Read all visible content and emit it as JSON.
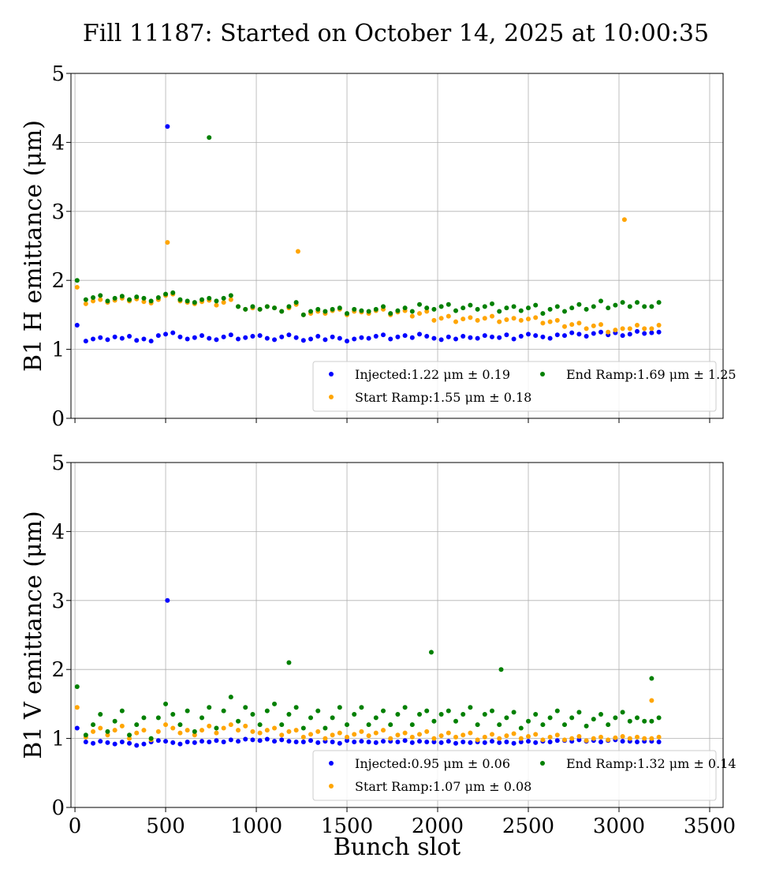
{
  "title": "Fill 11187: Started on October 14, 2025 at 10:00:35",
  "chart_data": [
    {
      "type": "scatter",
      "ylabel": "B1 H emittance (μm)",
      "xlabel": "",
      "xlim": [
        -22,
        3574
      ],
      "ylim": [
        0,
        5
      ],
      "xticks": [
        0,
        500,
        1000,
        1500,
        2000,
        2500,
        3000,
        3500
      ],
      "yticks": [
        "0",
        "1",
        "2",
        "3",
        "4",
        "5"
      ],
      "grid": true,
      "legend_placement": "lower-right",
      "x": [
        12,
        60,
        100,
        140,
        180,
        220,
        260,
        300,
        340,
        380,
        420,
        460,
        500,
        540,
        580,
        620,
        660,
        700,
        740,
        780,
        820,
        860,
        900,
        940,
        980,
        1020,
        1060,
        1100,
        1140,
        1180,
        1220,
        1260,
        1300,
        1340,
        1380,
        1420,
        1460,
        1500,
        1540,
        1580,
        1620,
        1660,
        1700,
        1740,
        1780,
        1820,
        1860,
        1900,
        1940,
        1980,
        2020,
        2060,
        2100,
        2140,
        2180,
        2220,
        2260,
        2300,
        2340,
        2380,
        2420,
        2460,
        2500,
        2540,
        2580,
        2620,
        2660,
        2700,
        2740,
        2780,
        2820,
        2860,
        2900,
        2940,
        2980,
        3020,
        3060,
        3100,
        3140,
        3180,
        3220
      ],
      "series": [
        {
          "name": "Injected:1.22 μm ± 0.19",
          "color": "#0000ff",
          "y": [
            1.35,
            1.12,
            1.15,
            1.17,
            1.14,
            1.18,
            1.16,
            1.19,
            1.13,
            1.15,
            1.12,
            1.2,
            1.22,
            1.24,
            1.18,
            1.15,
            1.17,
            1.2,
            1.16,
            1.14,
            1.18,
            1.21,
            1.15,
            1.17,
            1.19,
            1.2,
            1.16,
            1.14,
            1.18,
            1.21,
            1.17,
            1.13,
            1.15,
            1.19,
            1.14,
            1.18,
            1.16,
            1.12,
            1.15,
            1.17,
            1.16,
            1.19,
            1.21,
            1.15,
            1.18,
            1.2,
            1.17,
            1.22,
            1.19,
            1.16,
            1.14,
            1.18,
            1.15,
            1.19,
            1.17,
            1.16,
            1.2,
            1.18,
            1.17,
            1.21,
            1.15,
            1.19,
            1.22,
            1.2,
            1.18,
            1.16,
            1.21,
            1.2,
            1.24,
            1.22,
            1.19,
            1.23,
            1.25,
            1.21,
            1.24,
            1.2,
            1.22,
            1.26,
            1.23,
            1.24,
            1.25
          ],
          "outliers": [
            [
              510,
              4.23
            ]
          ]
        },
        {
          "name": "Start Ramp:1.55 μm ± 0.18",
          "color": "#ffa500",
          "y": [
            1.9,
            1.66,
            1.7,
            1.72,
            1.68,
            1.71,
            1.74,
            1.7,
            1.73,
            1.69,
            1.67,
            1.72,
            1.78,
            1.8,
            1.7,
            1.68,
            1.66,
            1.69,
            1.71,
            1.64,
            1.68,
            1.72,
            1.62,
            1.58,
            1.6,
            1.58,
            1.62,
            1.6,
            1.55,
            1.6,
            1.65,
            1.5,
            1.52,
            1.55,
            1.52,
            1.56,
            1.58,
            1.5,
            1.55,
            1.54,
            1.52,
            1.56,
            1.58,
            1.5,
            1.54,
            1.56,
            1.48,
            1.52,
            1.55,
            1.42,
            1.45,
            1.48,
            1.4,
            1.44,
            1.46,
            1.42,
            1.45,
            1.48,
            1.4,
            1.43,
            1.45,
            1.42,
            1.44,
            1.46,
            1.38,
            1.4,
            1.42,
            1.33,
            1.36,
            1.38,
            1.3,
            1.34,
            1.36,
            1.25,
            1.28,
            1.3,
            1.3,
            1.35,
            1.3,
            1.3,
            1.35
          ],
          "outliers": [
            [
              510,
              2.55
            ],
            [
              1230,
              2.42
            ],
            [
              3030,
              2.88
            ]
          ]
        },
        {
          "name": "End Ramp:1.69 μm ± 1.25",
          "color": "#008000",
          "y": [
            2.0,
            1.72,
            1.75,
            1.78,
            1.7,
            1.74,
            1.77,
            1.72,
            1.76,
            1.74,
            1.7,
            1.75,
            1.8,
            1.82,
            1.72,
            1.7,
            1.68,
            1.72,
            1.74,
            1.7,
            1.74,
            1.78,
            1.62,
            1.58,
            1.62,
            1.58,
            1.62,
            1.6,
            1.55,
            1.62,
            1.68,
            1.5,
            1.55,
            1.58,
            1.55,
            1.58,
            1.6,
            1.52,
            1.58,
            1.56,
            1.55,
            1.58,
            1.62,
            1.52,
            1.56,
            1.6,
            1.55,
            1.65,
            1.6,
            1.58,
            1.62,
            1.65,
            1.56,
            1.6,
            1.64,
            1.58,
            1.62,
            1.66,
            1.55,
            1.6,
            1.62,
            1.56,
            1.6,
            1.64,
            1.52,
            1.58,
            1.62,
            1.55,
            1.6,
            1.65,
            1.58,
            1.62,
            1.7,
            1.6,
            1.64,
            1.68,
            1.62,
            1.68,
            1.62,
            1.62,
            1.68
          ],
          "outliers": [
            [
              740,
              4.07
            ]
          ]
        }
      ]
    },
    {
      "type": "scatter",
      "ylabel": "B1 V emittance (μm)",
      "xlabel": "Bunch slot",
      "xlim": [
        -22,
        3574
      ],
      "ylim": [
        0,
        5
      ],
      "xticks": [
        0,
        500,
        1000,
        1500,
        2000,
        2500,
        3000,
        3500
      ],
      "xticklabels": [
        "0",
        "500",
        "1000",
        "1500",
        "2000",
        "2500",
        "3000",
        "3500"
      ],
      "yticks": [
        "0",
        "1",
        "2",
        "3",
        "4",
        "5"
      ],
      "grid": true,
      "legend_placement": "lower-right",
      "x": [
        12,
        60,
        100,
        140,
        180,
        220,
        260,
        300,
        340,
        380,
        420,
        460,
        500,
        540,
        580,
        620,
        660,
        700,
        740,
        780,
        820,
        860,
        900,
        940,
        980,
        1020,
        1060,
        1100,
        1140,
        1180,
        1220,
        1260,
        1300,
        1340,
        1380,
        1420,
        1460,
        1500,
        1540,
        1580,
        1620,
        1660,
        1700,
        1740,
        1780,
        1820,
        1860,
        1900,
        1940,
        1980,
        2020,
        2060,
        2100,
        2140,
        2180,
        2220,
        2260,
        2300,
        2340,
        2380,
        2420,
        2460,
        2500,
        2540,
        2580,
        2620,
        2660,
        2700,
        2740,
        2780,
        2820,
        2860,
        2900,
        2940,
        2980,
        3020,
        3060,
        3100,
        3140,
        3180,
        3220
      ],
      "series": [
        {
          "name": "Injected:0.95 μm ± 0.06",
          "color": "#0000ff",
          "y": [
            1.15,
            0.95,
            0.93,
            0.96,
            0.94,
            0.92,
            0.95,
            0.93,
            0.9,
            0.92,
            0.95,
            0.97,
            0.96,
            0.94,
            0.92,
            0.95,
            0.94,
            0.96,
            0.95,
            0.97,
            0.95,
            0.98,
            0.96,
            0.99,
            0.98,
            0.97,
            0.99,
            0.96,
            0.98,
            0.96,
            0.95,
            0.95,
            0.97,
            0.94,
            0.96,
            0.95,
            0.93,
            0.97,
            0.95,
            0.96,
            0.95,
            0.94,
            0.96,
            0.96,
            0.95,
            0.97,
            0.94,
            0.96,
            0.95,
            0.95,
            0.94,
            0.96,
            0.93,
            0.95,
            0.94,
            0.95,
            0.94,
            0.96,
            0.94,
            0.95,
            0.93,
            0.95,
            0.96,
            0.94,
            0.96,
            0.95,
            0.97,
            0.97,
            0.96,
            0.98,
            0.96,
            0.97,
            0.95,
            0.97,
            0.98,
            0.96,
            0.96,
            0.95,
            0.96,
            0.96,
            0.95
          ],
          "outliers": [
            [
              510,
              3.0
            ]
          ]
        },
        {
          "name": "Start Ramp:1.07 μm ± 0.08",
          "color": "#ffa500",
          "y": [
            1.45,
            1.02,
            1.1,
            1.15,
            1.05,
            1.12,
            1.18,
            1.0,
            1.08,
            1.12,
            0.98,
            1.1,
            1.2,
            1.15,
            1.08,
            1.12,
            1.05,
            1.12,
            1.18,
            1.08,
            1.15,
            1.2,
            1.12,
            1.18,
            1.1,
            1.08,
            1.12,
            1.15,
            1.05,
            1.1,
            1.12,
            1.02,
            1.06,
            1.1,
            1.0,
            1.05,
            1.08,
            1.02,
            1.06,
            1.1,
            1.04,
            1.08,
            1.12,
            1.0,
            1.05,
            1.08,
            1.02,
            1.06,
            1.1,
            1.0,
            1.04,
            1.08,
            1.02,
            1.05,
            1.08,
            0.98,
            1.02,
            1.06,
            1.0,
            1.04,
            1.07,
            1.0,
            1.03,
            1.06,
            0.98,
            1.02,
            1.05,
            0.98,
            1.0,
            1.03,
            0.97,
            1.0,
            1.02,
            0.98,
            1.01,
            1.03,
            1.0,
            1.02,
            1.0,
            1.0,
            1.02
          ],
          "outliers": [
            [
              3180,
              1.55
            ]
          ]
        },
        {
          "name": "End Ramp:1.32 μm ± 0.14",
          "color": "#008000",
          "y": [
            1.75,
            1.05,
            1.2,
            1.35,
            1.1,
            1.25,
            1.4,
            1.05,
            1.2,
            1.3,
            1.0,
            1.3,
            1.5,
            1.35,
            1.2,
            1.4,
            1.1,
            1.3,
            1.45,
            1.15,
            1.4,
            1.6,
            1.25,
            1.45,
            1.35,
            1.2,
            1.4,
            1.5,
            1.2,
            1.35,
            1.45,
            1.15,
            1.3,
            1.4,
            1.15,
            1.3,
            1.45,
            1.2,
            1.35,
            1.45,
            1.2,
            1.3,
            1.4,
            1.2,
            1.35,
            1.45,
            1.2,
            1.35,
            1.4,
            1.25,
            1.35,
            1.4,
            1.25,
            1.35,
            1.45,
            1.2,
            1.35,
            1.4,
            1.2,
            1.3,
            1.38,
            1.15,
            1.25,
            1.35,
            1.2,
            1.3,
            1.4,
            1.2,
            1.3,
            1.38,
            1.18,
            1.28,
            1.35,
            1.2,
            1.3,
            1.38,
            1.25,
            1.3,
            1.25,
            1.25,
            1.3
          ],
          "outliers": [
            [
              1180,
              2.1
            ],
            [
              1965,
              2.25
            ],
            [
              2350,
              2.0
            ],
            [
              3180,
              1.87
            ]
          ]
        }
      ]
    }
  ]
}
